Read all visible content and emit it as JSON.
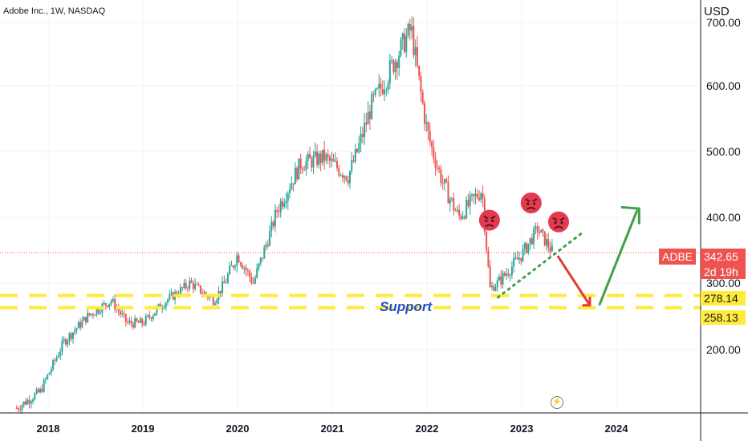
{
  "header": {
    "symbol_title": "Adobe Inc., 1W, NASDAQ",
    "currency": "USD"
  },
  "price_axis": {
    "ticks": [
      "700.00",
      "600.00",
      "500.00",
      "400.00",
      "300.00",
      "200.00"
    ]
  },
  "time_axis": {
    "ticks": [
      "2018",
      "2019",
      "2020",
      "2021",
      "2022",
      "2023",
      "2024"
    ]
  },
  "labels": {
    "ticker": "ADBE",
    "last_price": "342.65",
    "countdown": "2d 19h",
    "support_upper": "278.14",
    "support_lower": "258.13",
    "support_text": "Support"
  },
  "icons": {
    "alert": "lightning-icon",
    "angry_face": "angry-face-icon"
  },
  "colors": {
    "up": "#26a69a",
    "down": "#ef5350",
    "support": "#ffeb3b",
    "support_text": "#1f4ec9",
    "arrow_down": "#e53935",
    "arrow_up": "#43a047",
    "trendline": "#43a047"
  },
  "chart_data": {
    "type": "candlestick",
    "title": "Adobe Inc., 1W, NASDAQ",
    "ylabel": "USD",
    "ylim": [
      100,
      720
    ],
    "scale": "log",
    "x": [
      "2017-09",
      "2017-12",
      "2018-03",
      "2018-06",
      "2018-09",
      "2018-11",
      "2019-01",
      "2019-04",
      "2019-07",
      "2019-10",
      "2020-01",
      "2020-03",
      "2020-06",
      "2020-09",
      "2020-12",
      "2021-03",
      "2021-06",
      "2021-09",
      "2021-11",
      "2022-01",
      "2022-03",
      "2022-05",
      "2022-08",
      "2022-09",
      "2022-10",
      "2023-01",
      "2023-03",
      "2023-05"
    ],
    "close": [
      140,
      155,
      210,
      245,
      270,
      235,
      235,
      270,
      300,
      270,
      340,
      300,
      410,
      480,
      490,
      460,
      570,
      640,
      690,
      530,
      450,
      400,
      440,
      290,
      300,
      340,
      380,
      342.65
    ],
    "last_price": 342.65,
    "horizontal_levels": [
      {
        "label": "Support",
        "value": 278.14
      },
      {
        "label": "Support",
        "value": 258.13
      }
    ],
    "x_ticks": [
      "2018",
      "2019",
      "2020",
      "2021",
      "2022",
      "2023",
      "2024"
    ],
    "y_ticks": [
      700,
      600,
      500,
      400,
      300,
      200
    ],
    "grid": true
  }
}
